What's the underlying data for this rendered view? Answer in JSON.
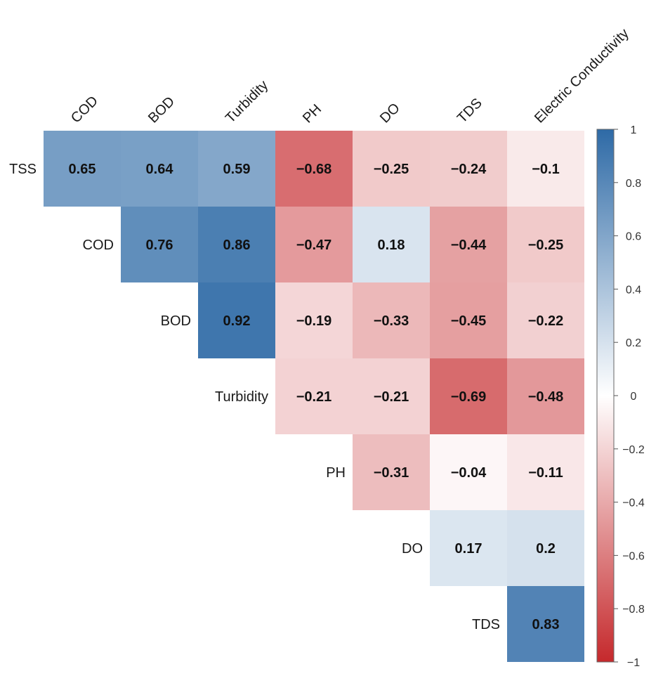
{
  "chart_data": {
    "type": "heatmap",
    "title": "",
    "variables": [
      "TSS",
      "COD",
      "BOD",
      "Turbidity",
      "PH",
      "DO",
      "TDS",
      "Electric Conductivity"
    ],
    "row_labels": [
      "TSS",
      "COD",
      "BOD",
      "Turbidity",
      "PH",
      "DO",
      "TDS"
    ],
    "col_labels": [
      "COD",
      "BOD",
      "Turbidity",
      "PH",
      "DO",
      "TDS",
      "Electric Conductivity"
    ],
    "cells": [
      {
        "row": "TSS",
        "col": "COD",
        "value": 0.65,
        "label": "0.65"
      },
      {
        "row": "TSS",
        "col": "BOD",
        "value": 0.64,
        "label": "0.64"
      },
      {
        "row": "TSS",
        "col": "Turbidity",
        "value": 0.59,
        "label": "0.59"
      },
      {
        "row": "TSS",
        "col": "PH",
        "value": -0.68,
        "label": "−0.68"
      },
      {
        "row": "TSS",
        "col": "DO",
        "value": -0.25,
        "label": "−0.25"
      },
      {
        "row": "TSS",
        "col": "TDS",
        "value": -0.24,
        "label": "−0.24"
      },
      {
        "row": "TSS",
        "col": "Electric Conductivity",
        "value": -0.1,
        "label": "−0.1"
      },
      {
        "row": "COD",
        "col": "BOD",
        "value": 0.76,
        "label": "0.76"
      },
      {
        "row": "COD",
        "col": "Turbidity",
        "value": 0.86,
        "label": "0.86"
      },
      {
        "row": "COD",
        "col": "PH",
        "value": -0.47,
        "label": "−0.47"
      },
      {
        "row": "COD",
        "col": "DO",
        "value": 0.18,
        "label": "0.18"
      },
      {
        "row": "COD",
        "col": "TDS",
        "value": -0.44,
        "label": "−0.44"
      },
      {
        "row": "COD",
        "col": "Electric Conductivity",
        "value": -0.25,
        "label": "−0.25"
      },
      {
        "row": "BOD",
        "col": "Turbidity",
        "value": 0.92,
        "label": "0.92"
      },
      {
        "row": "BOD",
        "col": "PH",
        "value": -0.19,
        "label": "−0.19"
      },
      {
        "row": "BOD",
        "col": "DO",
        "value": -0.33,
        "label": "−0.33"
      },
      {
        "row": "BOD",
        "col": "TDS",
        "value": -0.45,
        "label": "−0.45"
      },
      {
        "row": "BOD",
        "col": "Electric Conductivity",
        "value": -0.22,
        "label": "−0.22"
      },
      {
        "row": "Turbidity",
        "col": "PH",
        "value": -0.21,
        "label": "−0.21"
      },
      {
        "row": "Turbidity",
        "col": "DO",
        "value": -0.21,
        "label": "−0.21"
      },
      {
        "row": "Turbidity",
        "col": "TDS",
        "value": -0.69,
        "label": "−0.69"
      },
      {
        "row": "Turbidity",
        "col": "Electric Conductivity",
        "value": -0.48,
        "label": "−0.48"
      },
      {
        "row": "PH",
        "col": "DO",
        "value": -0.31,
        "label": "−0.31"
      },
      {
        "row": "PH",
        "col": "TDS",
        "value": -0.04,
        "label": "−0.04"
      },
      {
        "row": "PH",
        "col": "Electric Conductivity",
        "value": -0.11,
        "label": "−0.11"
      },
      {
        "row": "DO",
        "col": "TDS",
        "value": 0.17,
        "label": "0.17"
      },
      {
        "row": "DO",
        "col": "Electric Conductivity",
        "value": 0.2,
        "label": "0.2"
      },
      {
        "row": "TDS",
        "col": "Electric Conductivity",
        "value": 0.83,
        "label": "0.83"
      }
    ],
    "colorbar": {
      "range": [
        -1,
        1
      ],
      "ticks": [
        1,
        0.8,
        0.6,
        0.4,
        0.2,
        0,
        -0.2,
        -0.4,
        -0.6,
        -0.8,
        -1
      ],
      "tick_labels": [
        "1",
        "0.8",
        "0.6",
        "0.4",
        "0.2",
        "0",
        "−0.2",
        "−0.4",
        "−0.6",
        "−0.8",
        "−1"
      ],
      "placement": "right"
    },
    "colors": {
      "positive": "#2e6aa6",
      "neutral": "#ffffff",
      "negative": "#c5292c"
    },
    "grid": false
  }
}
